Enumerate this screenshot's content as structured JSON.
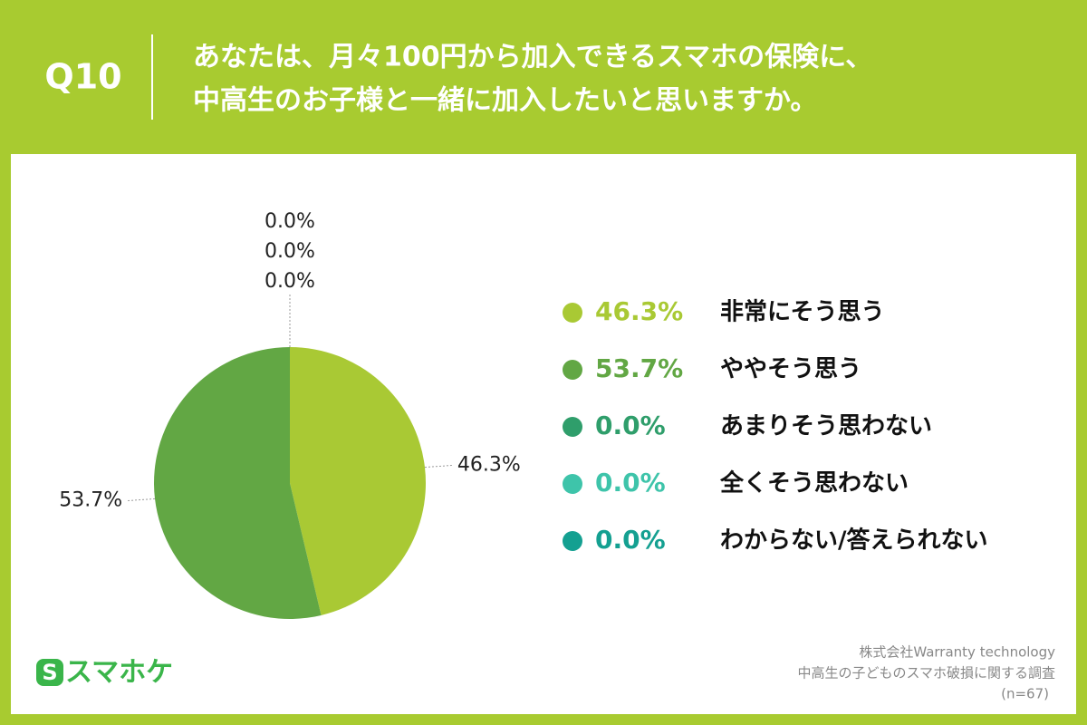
{
  "chart_data": {
    "type": "pie",
    "question": "Q10",
    "title": [
      "あなたは、月々100円から加入できるスマホの保険に、",
      "中高生のお子様と一緒に加入したいと思いますか。"
    ],
    "categories": [
      "非常にそう思う",
      "ややそう思う",
      "あまりそう思わない",
      "全くそう思わない",
      "わからない/答えられない"
    ],
    "values": [
      46.3,
      53.7,
      0,
      0,
      0
    ],
    "value_labels": [
      "46.3%",
      "53.7%",
      "0.0%",
      "0.0%",
      "0.0%"
    ],
    "colors": [
      "#a9c934",
      "#62a744",
      "#2f9e6b",
      "#3ec4aa",
      "#14a091"
    ],
    "brand": "スマホケ",
    "source": [
      "株式会社Warranty technology",
      "中高生の子どものスマホ破損に関する調査",
      "(n=67)"
    ]
  }
}
